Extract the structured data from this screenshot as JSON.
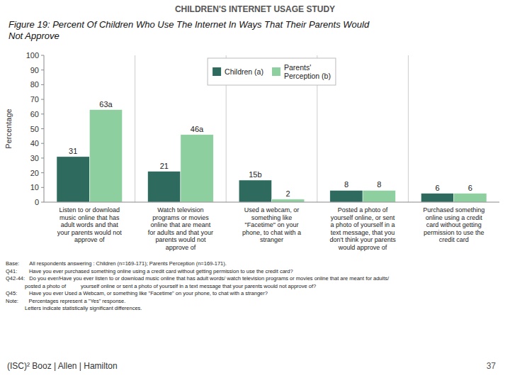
{
  "chart_data": {
    "type": "bar",
    "title": "Figure 19: Percent Of Children Who Use The Internet In Ways That Their Parents Would\nNot Approve",
    "subtitle": "CHILDREN'S INTERNET USAGE STUDY",
    "ylabel": "Percentage",
    "categories": [
      "Listen to or download\nmusic online that has\nadult words and that\nyour parents would not\napprove of",
      "Watch television\nprograms or movies\nonline that are meant\nfor adults and that your\nparents would not\napprove of",
      "Used a webcam, or\nsomething like\n\"Facetime\" on your\nphone, to chat with a\nstranger",
      "Posted a photo of\nyourself online, or sent\na photo of yourself in a\ntext message, that you\ndon't think your parents\nwould approve of",
      "Purchased something\nonline using a credit\ncard without getting\npermission to use the\ncredit card"
    ],
    "series": [
      {
        "name": "Children (a)",
        "color": "#2e6b5e",
        "values": [
          31,
          21,
          15,
          8,
          6
        ],
        "value_labels": [
          "31",
          "21",
          "15b",
          "8",
          "6"
        ]
      },
      {
        "name": "Parents'\nPerception (b)",
        "color": "#8ecfa0",
        "values": [
          63,
          46,
          2,
          8,
          6
        ],
        "value_labels": [
          "63a",
          "46a",
          "2",
          "8",
          "6"
        ]
      }
    ],
    "ylim": [
      0,
      100
    ],
    "yticks": [
      0,
      10,
      20,
      30,
      40,
      50,
      60,
      70,
      80,
      90,
      100
    ],
    "grid": false,
    "legend": "upper center",
    "data_labels": true,
    "annotations": [
      "Base:       All respondents answering : Children (n=169-171); Parents Perception (n=169-171).",
      "Q41:        Have you ever purchased something online using a credit card without getting permission to use the credit card?",
      "Q42-44:   Do you ever/Have you ever listen to or download music online that has adult words/ watch television programs or movies online that are meant for adults/",
      "             posted a photo of          yourself online or sent a photo of yourself in a text message that your parents would not approve of?",
      "Q45:        Have you ever Used a Webcam, or something like \"Facetime\" on your phone, to chat with a stranger?",
      "Note:       Percentages represent a \"Yes\" response.",
      "             Letters indicate statistically significant differences.",
      "(ISC)²  Booz | Allen | Hamilton",
      "37"
    ]
  }
}
